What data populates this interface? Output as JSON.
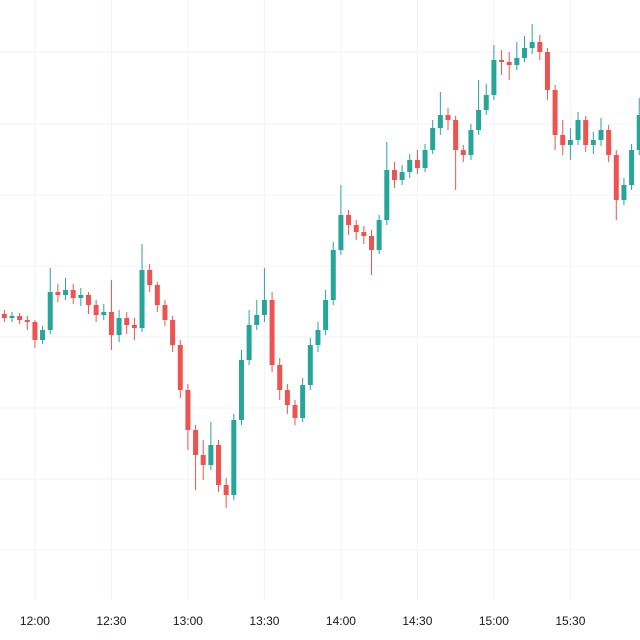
{
  "chart_data": {
    "type": "candlestick",
    "x": [
      708,
      711,
      714,
      717,
      720,
      723,
      726,
      729,
      732,
      735,
      738,
      741,
      744,
      747,
      750,
      753,
      756,
      759,
      762,
      765,
      768,
      771,
      774,
      777,
      780,
      783,
      786,
      789,
      792,
      795,
      798,
      801,
      804,
      807,
      810,
      813,
      816,
      819,
      822,
      825,
      828,
      831,
      834,
      837,
      840,
      843,
      846,
      849,
      852,
      855,
      858,
      861,
      864,
      867,
      870,
      873,
      876,
      879,
      882,
      885,
      888,
      891,
      894,
      897,
      900,
      903,
      906,
      909,
      912,
      915,
      918,
      921,
      924,
      927,
      930,
      933,
      936,
      939,
      942,
      945,
      948,
      951,
      954,
      957
    ],
    "open": [
      326,
      322,
      324,
      320,
      318,
      300,
      310,
      348,
      345,
      350,
      342,
      345,
      335,
      325,
      328,
      305,
      322,
      315,
      312,
      370,
      355,
      335,
      320,
      295,
      250,
      210,
      185,
      175,
      195,
      155,
      145,
      220,
      280,
      315,
      325,
      340,
      275,
      250,
      235,
      222,
      255,
      295,
      310,
      340,
      390,
      425,
      415,
      408,
      404,
      390,
      420,
      470,
      460,
      468,
      480,
      472,
      490,
      512,
      525,
      520,
      490,
      485,
      510,
      530,
      545,
      580,
      578,
      575,
      582,
      592,
      598,
      588,
      550,
      505,
      495,
      500,
      520,
      495,
      500,
      510,
      485,
      440,
      455,
      490
    ],
    "high": [
      330,
      328,
      327,
      324,
      320,
      314,
      372,
      356,
      362,
      356,
      352,
      348,
      340,
      336,
      360,
      330,
      328,
      322,
      396,
      376,
      358,
      340,
      324,
      300,
      256,
      215,
      200,
      218,
      200,
      162,
      226,
      290,
      330,
      340,
      372,
      348,
      282,
      256,
      240,
      262,
      302,
      318,
      350,
      398,
      455,
      430,
      420,
      414,
      410,
      425,
      498,
      478,
      475,
      486,
      490,
      496,
      520,
      548,
      532,
      524,
      495,
      516,
      560,
      556,
      595,
      590,
      588,
      598,
      604,
      616,
      605,
      592,
      555,
      520,
      512,
      528,
      524,
      508,
      522,
      515,
      490,
      462,
      496,
      542
    ],
    "low": [
      318,
      318,
      316,
      310,
      292,
      296,
      306,
      338,
      340,
      336,
      334,
      326,
      318,
      320,
      290,
      298,
      306,
      300,
      308,
      348,
      328,
      314,
      288,
      242,
      190,
      150,
      160,
      170,
      148,
      132,
      140,
      215,
      275,
      310,
      318,
      268,
      240,
      226,
      215,
      218,
      250,
      288,
      305,
      335,
      385,
      405,
      400,
      396,
      365,
      386,
      415,
      452,
      455,
      462,
      466,
      468,
      486,
      505,
      510,
      450,
      478,
      480,
      505,
      525,
      540,
      565,
      560,
      570,
      578,
      586,
      580,
      540,
      490,
      485,
      480,
      495,
      488,
      486,
      494,
      478,
      420,
      435,
      450,
      485
    ],
    "close": [
      322,
      324,
      320,
      318,
      300,
      310,
      348,
      345,
      350,
      342,
      345,
      335,
      325,
      328,
      305,
      322,
      315,
      312,
      370,
      355,
      335,
      320,
      295,
      250,
      210,
      185,
      175,
      195,
      155,
      145,
      220,
      280,
      315,
      325,
      340,
      275,
      250,
      235,
      222,
      255,
      295,
      310,
      340,
      390,
      425,
      415,
      408,
      404,
      390,
      420,
      470,
      460,
      468,
      480,
      472,
      490,
      512,
      525,
      520,
      490,
      485,
      510,
      530,
      545,
      580,
      578,
      575,
      582,
      592,
      598,
      588,
      550,
      505,
      495,
      500,
      520,
      495,
      500,
      510,
      485,
      440,
      455,
      490,
      525
    ],
    "up_color": "#26a69a",
    "down_color": "#ef5350",
    "xlim": [
      706.3,
      957.3
    ],
    "xticks": [
      {
        "value": 720,
        "label": "12:00"
      },
      {
        "value": 750,
        "label": "12:30"
      },
      {
        "value": 780,
        "label": "13:00"
      },
      {
        "value": 810,
        "label": "13:30"
      },
      {
        "value": 840,
        "label": "14:00"
      },
      {
        "value": 870,
        "label": "14:30"
      },
      {
        "value": 900,
        "label": "15:00"
      },
      {
        "value": 930,
        "label": "15:30"
      }
    ],
    "ylim": [
      40,
      640
    ],
    "yticks": [
      90,
      161,
      232,
      303,
      374,
      445,
      516,
      588
    ],
    "grid": true
  }
}
